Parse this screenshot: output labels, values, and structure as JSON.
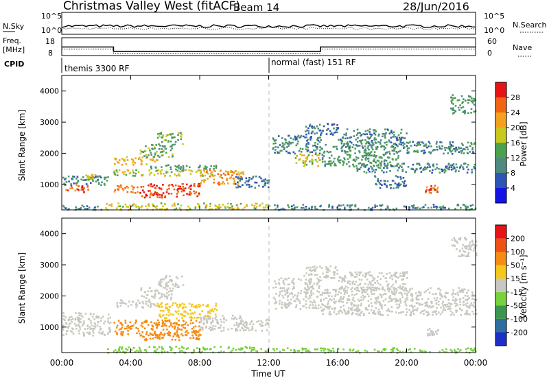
{
  "header": {
    "title": "Christmas Valley West (fitACF)",
    "beam": "Beam 14",
    "date": "28/Jun/2016"
  },
  "noise_panel": {
    "left_label": "N.Sky",
    "right_label": "N.Search",
    "left_ticks": [
      "10^5",
      "10^0"
    ],
    "right_ticks": [
      "10^5",
      "10^0"
    ]
  },
  "freq_panel": {
    "left_label_1": "Freq.",
    "left_label_2": "[MHz]",
    "right_label": "Nave",
    "left_ticks": [
      "18",
      "8"
    ],
    "right_ticks": [
      "60",
      "0"
    ],
    "freq_mhz": [
      {
        "from": "00:00",
        "to": "03:00",
        "value": 12.8
      },
      {
        "from": "03:00",
        "to": "15:00",
        "value": 10.4
      },
      {
        "from": "15:00",
        "to": "24:00",
        "value": 12.8
      }
    ]
  },
  "cpid": {
    "label": "CPID",
    "modes": [
      {
        "start": "00:00",
        "text": "themis 3300 RF"
      },
      {
        "start": "12:00",
        "text": "normal (fast) 151 RF"
      }
    ]
  },
  "chart_data": [
    {
      "type": "heatmap",
      "panel": "power",
      "ylabel": "Slant Range [km]",
      "xlabel": "Time UT",
      "ylim": [
        180,
        4500
      ],
      "y_ticks": [
        "1000",
        "2000",
        "3000",
        "4000"
      ],
      "colorbar_label": "Power [dB]",
      "colorbar_ticks": [
        "4",
        "8",
        "12",
        "16",
        "20",
        "24",
        "28"
      ],
      "colors": [
        "#1414e6",
        "#2e54b4",
        "#4f8a80",
        "#4aa24f",
        "#c8c81e",
        "#f5a01e",
        "#f06414",
        "#e61414"
      ],
      "regions": [
        {
          "t0": 0.2,
          "t1": 1.5,
          "r0": 750,
          "r1": 1000,
          "v": 26
        },
        {
          "t0": 0.0,
          "t1": 2.8,
          "r0": 1000,
          "r1": 1300,
          "v": 10
        },
        {
          "t0": 1.3,
          "t1": 2.0,
          "r0": 1150,
          "r1": 1350,
          "v": 18
        },
        {
          "t0": 3.0,
          "t1": 5.5,
          "r0": 1650,
          "r1": 1900,
          "v": 20
        },
        {
          "t0": 4.5,
          "t1": 6.5,
          "r0": 1900,
          "r1": 2300,
          "v": 14
        },
        {
          "t0": 3.0,
          "t1": 9.0,
          "r0": 1300,
          "r1": 1500,
          "v": 18
        },
        {
          "t0": 5.0,
          "t1": 9.0,
          "r0": 1500,
          "r1": 1650,
          "v": 12
        },
        {
          "t0": 5.5,
          "t1": 7.0,
          "r0": 2300,
          "r1": 2700,
          "v": 14
        },
        {
          "t0": 4.5,
          "t1": 8.0,
          "r0": 600,
          "r1": 1050,
          "v": 28
        },
        {
          "t0": 8.0,
          "t1": 10.5,
          "r0": 1000,
          "r1": 1500,
          "v": 22
        },
        {
          "t0": 3.0,
          "t1": 4.5,
          "r0": 750,
          "r1": 1000,
          "v": 24
        },
        {
          "t0": 10.0,
          "t1": 12.0,
          "r0": 900,
          "r1": 1300,
          "v": 8
        },
        {
          "t0": 2.5,
          "t1": 12.0,
          "r0": 200,
          "r1": 420,
          "v": 18
        },
        {
          "t0": 0.0,
          "t1": 2.5,
          "r0": 200,
          "r1": 350,
          "v": 10
        },
        {
          "t0": 12.0,
          "t1": 24.0,
          "r0": 200,
          "r1": 380,
          "v": 10
        },
        {
          "t0": 12.2,
          "t1": 15.0,
          "r0": 2000,
          "r1": 2600,
          "v": 10
        },
        {
          "t0": 13.5,
          "t1": 15.0,
          "r0": 1600,
          "r1": 2000,
          "v": 18
        },
        {
          "t0": 14.0,
          "t1": 16.0,
          "r0": 2600,
          "r1": 3000,
          "v": 8
        },
        {
          "t0": 15.0,
          "t1": 19.5,
          "r0": 1600,
          "r1": 2300,
          "v": 12
        },
        {
          "t0": 17.0,
          "t1": 24.0,
          "r0": 1400,
          "r1": 1700,
          "v": 10
        },
        {
          "t0": 16.0,
          "t1": 20.0,
          "r0": 2200,
          "r1": 2800,
          "v": 10
        },
        {
          "t0": 19.5,
          "t1": 24.0,
          "r0": 2000,
          "r1": 2400,
          "v": 10
        },
        {
          "t0": 21.0,
          "t1": 21.8,
          "r0": 750,
          "r1": 1000,
          "v": 26
        },
        {
          "t0": 22.5,
          "t1": 24.0,
          "r0": 3300,
          "r1": 3900,
          "v": 12
        },
        {
          "t0": 18.0,
          "t1": 20.0,
          "r0": 900,
          "r1": 1300,
          "v": 8
        }
      ]
    },
    {
      "type": "heatmap",
      "panel": "velocity",
      "ylabel": "Slant Range [km]",
      "xlabel": "Time UT",
      "ylim": [
        180,
        4500
      ],
      "y_ticks": [
        "1000",
        "2000",
        "3000",
        "4000"
      ],
      "colorbar_label": "Velocity [m s⁻¹]",
      "colorbar_ticks": [
        "200",
        "100",
        "50",
        "15",
        "-15",
        "-50",
        "-100",
        "-200"
      ],
      "colors": [
        "#1e2ec8",
        "#2e6ea0",
        "#3c9650",
        "#78d23c",
        "#c8c8c0",
        "#f5c81e",
        "#f58c14",
        "#f05014",
        "#e61414"
      ],
      "regions": [
        {
          "t0": 0.0,
          "t1": 2.8,
          "r0": 750,
          "r1": 1500,
          "v": 0
        },
        {
          "t0": 3.0,
          "t1": 5.5,
          "r0": 1650,
          "r1": 1900,
          "v": 0
        },
        {
          "t0": 4.5,
          "t1": 6.5,
          "r0": 1900,
          "r1": 2300,
          "v": 0
        },
        {
          "t0": 5.5,
          "t1": 7.0,
          "r0": 2300,
          "r1": 2700,
          "v": 0
        },
        {
          "t0": 5.5,
          "t1": 9.0,
          "r0": 1300,
          "r1": 1800,
          "v": -40
        },
        {
          "t0": 3.0,
          "t1": 8.0,
          "r0": 750,
          "r1": 1250,
          "v": -90
        },
        {
          "t0": 4.5,
          "t1": 8.0,
          "r0": 600,
          "r1": 900,
          "v": -70
        },
        {
          "t0": 8.0,
          "t1": 10.5,
          "r0": 900,
          "r1": 1400,
          "v": 0
        },
        {
          "t0": 10.0,
          "t1": 12.0,
          "r0": 900,
          "r1": 1300,
          "v": 0
        },
        {
          "t0": 2.5,
          "t1": 12.0,
          "r0": 200,
          "r1": 400,
          "v": 30
        },
        {
          "t0": 12.0,
          "t1": 24.0,
          "r0": 200,
          "r1": 350,
          "v": 20
        },
        {
          "t0": 12.2,
          "t1": 15.0,
          "r0": 1600,
          "r1": 2600,
          "v": 0
        },
        {
          "t0": 14.0,
          "t1": 16.0,
          "r0": 2600,
          "r1": 3000,
          "v": 0
        },
        {
          "t0": 15.0,
          "t1": 24.0,
          "r0": 1400,
          "r1": 2300,
          "v": 0
        },
        {
          "t0": 16.0,
          "t1": 20.0,
          "r0": 2200,
          "r1": 2800,
          "v": 0
        },
        {
          "t0": 21.0,
          "t1": 21.8,
          "r0": 750,
          "r1": 1000,
          "v": 0
        },
        {
          "t0": 22.5,
          "t1": 24.0,
          "r0": 3300,
          "r1": 3900,
          "v": 0
        }
      ]
    }
  ],
  "x_axis": {
    "label": "Time UT",
    "ticks": [
      "00:00",
      "04:00",
      "08:00",
      "12:00",
      "16:00",
      "20:00",
      "00:00"
    ]
  }
}
